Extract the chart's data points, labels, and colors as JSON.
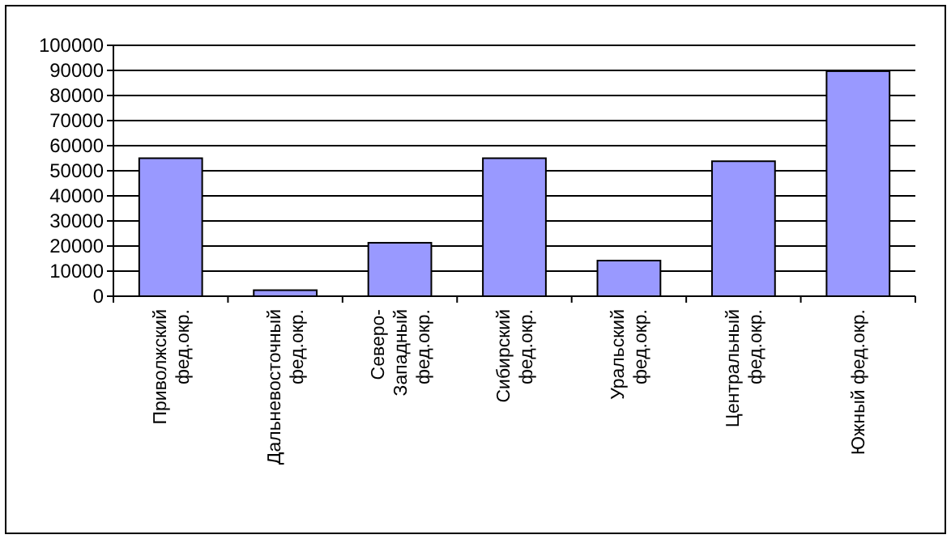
{
  "chart_data": {
    "type": "bar",
    "categories": [
      "Приволжский фед.окр.",
      "Дальневосточный фед.окр.",
      "Северо-Западный фед.окр.",
      "Сибирский фед.окр.",
      "Уральский фед.окр.",
      "Центральный фед.окр.",
      "Южный фед.окр."
    ],
    "values": [
      55000,
      2400,
      21300,
      55000,
      14200,
      53800,
      89700
    ],
    "color": "#9999ff",
    "ylim": [
      0,
      100000
    ],
    "yticks": [
      0,
      10000,
      20000,
      30000,
      40000,
      50000,
      60000,
      70000,
      80000,
      90000,
      100000
    ],
    "grid": "y"
  }
}
